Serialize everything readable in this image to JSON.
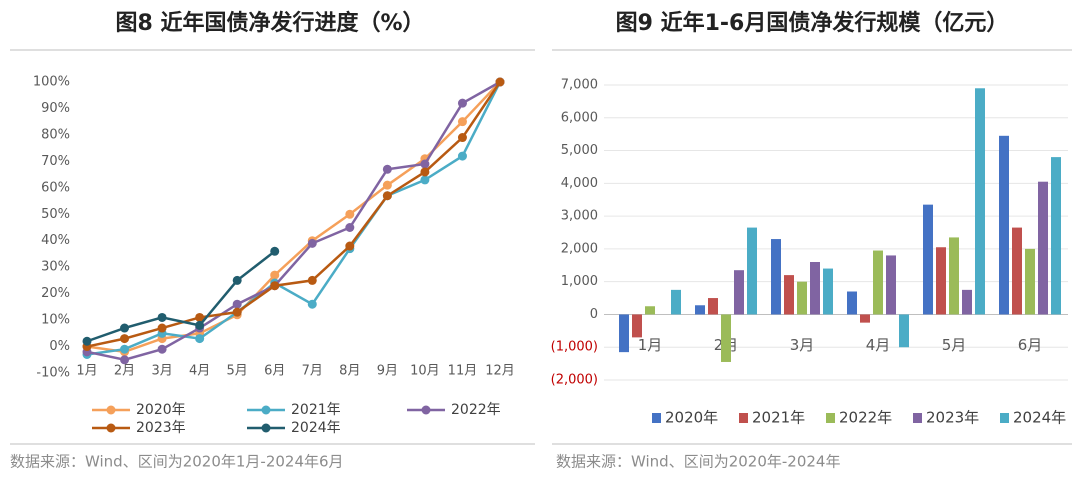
{
  "chart_data": [
    {
      "type": "line",
      "title": "图8 近年国债净发行进度（%）",
      "source": "数据来源：Wind、区间为2020年1月-2024年6月",
      "categories": [
        "1月",
        "2月",
        "3月",
        "4月",
        "5月",
        "6月",
        "7月",
        "8月",
        "9月",
        "10月",
        "11月",
        "12月"
      ],
      "ylim": [
        -10,
        100
      ],
      "yticks": [
        {
          "value": -10,
          "label": "-10%"
        },
        {
          "value": 0,
          "label": "0%"
        },
        {
          "value": 10,
          "label": "10%"
        },
        {
          "value": 20,
          "label": "20%"
        },
        {
          "value": 30,
          "label": "30%"
        },
        {
          "value": 40,
          "label": "40%"
        },
        {
          "value": 50,
          "label": "50%"
        },
        {
          "value": 60,
          "label": "60%"
        },
        {
          "value": 70,
          "label": "70%"
        },
        {
          "value": 80,
          "label": "80%"
        },
        {
          "value": 90,
          "label": "90%"
        },
        {
          "value": 100,
          "label": "100%"
        }
      ],
      "grid": false,
      "series": [
        {
          "name": "2020年",
          "color": "#f5a05a",
          "values": [
            0,
            -2,
            3,
            5,
            12,
            27,
            40,
            50,
            61,
            71,
            85,
            100
          ]
        },
        {
          "name": "2021年",
          "color": "#4bacc6",
          "values": [
            -3,
            -1,
            5,
            3,
            13,
            24,
            16,
            37,
            57,
            63,
            72,
            100
          ]
        },
        {
          "name": "2022年",
          "color": "#8064a2",
          "values": [
            -2,
            -5,
            -1,
            7,
            16,
            23,
            39,
            45,
            67,
            69,
            92,
            100
          ]
        },
        {
          "name": "2023年",
          "color": "#b85a12",
          "values": [
            0,
            3,
            7,
            11,
            13,
            23,
            25,
            38,
            57,
            66,
            79,
            100
          ]
        },
        {
          "name": "2024年",
          "color": "#215d6e",
          "values": [
            2,
            7,
            11,
            8,
            25,
            36,
            null,
            null,
            null,
            null,
            null,
            null
          ]
        }
      ]
    },
    {
      "type": "bar",
      "title": "图9 近年1-6月国债净发行规模（亿元）",
      "source": "数据来源：Wind、区间为2020年-2024年",
      "categories": [
        "1月",
        "2月",
        "3月",
        "4月",
        "5月",
        "6月"
      ],
      "ylim": [
        -2000,
        7000
      ],
      "yticks": [
        {
          "value": -2000,
          "label": "(2,000)"
        },
        {
          "value": -1000,
          "label": "(1,000)"
        },
        0,
        {
          "value": 1000,
          "label": "1,000"
        },
        {
          "value": 2000,
          "label": "2,000"
        },
        {
          "value": 3000,
          "label": "3,000"
        },
        {
          "value": 4000,
          "label": "4,000"
        },
        {
          "value": 5000,
          "label": "5,000"
        },
        {
          "value": 6000,
          "label": "6,000"
        },
        {
          "value": 7000,
          "label": "7,000"
        }
      ],
      "grid": true,
      "negative_label_color": "#c00000",
      "series": [
        {
          "name": "2020年",
          "color": "#4472c4",
          "values": [
            -1150,
            280,
            2300,
            700,
            3350,
            5450
          ]
        },
        {
          "name": "2021年",
          "color": "#c0504d",
          "values": [
            -700,
            500,
            1200,
            -250,
            2050,
            2650
          ]
        },
        {
          "name": "2022年",
          "color": "#9bbb59",
          "values": [
            250,
            -1450,
            1000,
            1950,
            2350,
            2000
          ]
        },
        {
          "name": "2023年",
          "color": "#8064a2",
          "values": [
            0,
            1350,
            1600,
            1800,
            750,
            4050
          ]
        },
        {
          "name": "2024年",
          "color": "#4bacc6",
          "values": [
            750,
            2650,
            1400,
            -1000,
            6900,
            4800
          ]
        }
      ]
    }
  ]
}
